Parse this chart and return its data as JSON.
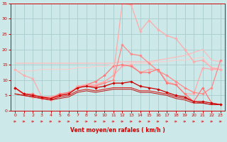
{
  "background_color": "#cce8e8",
  "grid_color": "#aacccc",
  "xlabel": "Vent moyen/en rafales ( km/h )",
  "xlabel_color": "#cc0000",
  "tick_color": "#cc0000",
  "arrow_color": "#dd3333",
  "xlim": [
    -0.5,
    23.5
  ],
  "ylim": [
    0,
    35
  ],
  "yticks": [
    0,
    5,
    10,
    15,
    20,
    25,
    30,
    35
  ],
  "xticks": [
    0,
    1,
    2,
    3,
    4,
    5,
    6,
    7,
    8,
    9,
    10,
    11,
    12,
    13,
    14,
    15,
    16,
    17,
    18,
    19,
    20,
    21,
    22,
    23
  ],
  "lines": [
    {
      "x": [
        0,
        1,
        2,
        3,
        4,
        5,
        6,
        7,
        8,
        9,
        10,
        11,
        12,
        13,
        14,
        15,
        16,
        17,
        18,
        19,
        20,
        21,
        22,
        23
      ],
      "y": [
        13.5,
        11.5,
        10.5,
        4.5,
        4.5,
        5.5,
        5.5,
        8.0,
        8.5,
        8.5,
        9.5,
        11.5,
        14.5,
        15.0,
        12.5,
        13.5,
        13.5,
        9.5,
        8.5,
        5.5,
        5.5,
        14.0,
        13.5,
        13.5
      ],
      "color": "#ffaaaa",
      "lw": 0.9,
      "marker": "D",
      "ms": 1.8
    },
    {
      "x": [
        0,
        1,
        2,
        3,
        4,
        5,
        6,
        7,
        8,
        9,
        10,
        11,
        12,
        13,
        14,
        15,
        16,
        17,
        18,
        19,
        20,
        21,
        22,
        23
      ],
      "y": [
        15.5,
        15.5,
        15.5,
        15.5,
        15.5,
        15.5,
        15.5,
        15.5,
        15.5,
        15.5,
        15.5,
        15.5,
        16.0,
        16.0,
        16.0,
        16.0,
        16.5,
        17.0,
        17.5,
        18.0,
        19.0,
        20.0,
        16.5,
        16.0
      ],
      "color": "#ffbbbb",
      "lw": 0.9,
      "marker": null,
      "ms": 0
    },
    {
      "x": [
        0,
        1,
        2,
        3,
        4,
        5,
        6,
        7,
        8,
        9,
        10,
        11,
        12,
        13,
        14,
        15,
        16,
        17,
        18,
        19,
        20,
        21,
        22,
        23
      ],
      "y": [
        13.0,
        13.0,
        13.0,
        13.5,
        13.5,
        13.5,
        13.5,
        14.0,
        14.0,
        14.5,
        14.5,
        15.0,
        15.0,
        15.5,
        15.5,
        15.5,
        16.0,
        16.0,
        16.5,
        16.5,
        17.0,
        17.5,
        14.0,
        14.0
      ],
      "color": "#ffcccc",
      "lw": 0.8,
      "marker": null,
      "ms": 0
    },
    {
      "x": [
        0,
        1,
        2,
        3,
        4,
        5,
        6,
        7,
        8,
        9,
        10,
        11,
        12,
        13,
        14,
        15,
        16,
        17,
        18,
        19,
        20,
        21,
        22,
        23
      ],
      "y": [
        7.5,
        5.5,
        5.5,
        4.0,
        4.0,
        5.5,
        6.0,
        7.5,
        8.5,
        9.5,
        11.5,
        14.5,
        15.0,
        14.5,
        12.5,
        12.5,
        13.5,
        9.0,
        8.5,
        5.5,
        3.0,
        7.5,
        2.5,
        2.0
      ],
      "color": "#ff7777",
      "lw": 0.9,
      "marker": "D",
      "ms": 1.8
    },
    {
      "x": [
        0,
        1,
        2,
        3,
        4,
        5,
        6,
        7,
        8,
        9,
        10,
        11,
        12,
        13,
        14,
        15,
        16,
        17,
        18,
        19,
        20,
        21,
        22,
        23
      ],
      "y": [
        7.5,
        5.0,
        4.5,
        4.0,
        3.5,
        5.0,
        5.5,
        8.0,
        8.5,
        8.0,
        9.5,
        11.5,
        35.0,
        34.5,
        26.0,
        29.5,
        26.5,
        24.5,
        23.5,
        20.0,
        16.0,
        16.5,
        14.0,
        13.5
      ],
      "color": "#ffaaaa",
      "lw": 0.9,
      "marker": "D",
      "ms": 1.8
    },
    {
      "x": [
        0,
        1,
        2,
        3,
        4,
        5,
        6,
        7,
        8,
        9,
        10,
        11,
        12,
        13,
        14,
        15,
        16,
        17,
        18,
        19,
        20,
        21,
        22,
        23
      ],
      "y": [
        7.5,
        5.5,
        5.0,
        4.5,
        4.5,
        5.0,
        5.5,
        7.5,
        8.0,
        8.0,
        9.0,
        10.0,
        21.5,
        18.5,
        18.0,
        15.5,
        13.0,
        11.5,
        9.5,
        7.5,
        6.0,
        5.5,
        7.5,
        16.5
      ],
      "color": "#ff8888",
      "lw": 0.9,
      "marker": "D",
      "ms": 1.8
    },
    {
      "x": [
        0,
        1,
        2,
        3,
        4,
        5,
        6,
        7,
        8,
        9,
        10,
        11,
        12,
        13,
        14,
        15,
        16,
        17,
        18,
        19,
        20,
        21,
        22,
        23
      ],
      "y": [
        7.5,
        5.5,
        5.0,
        4.5,
        4.0,
        5.0,
        5.5,
        7.5,
        8.0,
        7.5,
        8.0,
        9.0,
        9.0,
        9.5,
        8.0,
        7.5,
        7.0,
        6.0,
        5.0,
        4.5,
        3.0,
        3.0,
        2.5,
        2.0
      ],
      "color": "#cc0000",
      "lw": 0.9,
      "marker": "D",
      "ms": 1.8
    },
    {
      "x": [
        0,
        1,
        2,
        3,
        4,
        5,
        6,
        7,
        8,
        9,
        10,
        11,
        12,
        13,
        14,
        15,
        16,
        17,
        18,
        19,
        20,
        21,
        22,
        23
      ],
      "y": [
        5.5,
        5.0,
        4.5,
        4.0,
        3.5,
        4.5,
        5.0,
        6.5,
        7.0,
        6.5,
        7.0,
        7.5,
        7.5,
        7.5,
        6.5,
        6.5,
        6.0,
        5.5,
        4.5,
        4.0,
        3.0,
        2.5,
        2.0,
        2.0
      ],
      "color": "#dd2222",
      "lw": 0.8,
      "marker": null,
      "ms": 0
    },
    {
      "x": [
        0,
        1,
        2,
        3,
        4,
        5,
        6,
        7,
        8,
        9,
        10,
        11,
        12,
        13,
        14,
        15,
        16,
        17,
        18,
        19,
        20,
        21,
        22,
        23
      ],
      "y": [
        5.5,
        5.0,
        4.5,
        4.0,
        3.5,
        4.0,
        4.5,
        6.0,
        6.5,
        6.0,
        6.5,
        7.0,
        7.0,
        7.0,
        6.0,
        6.0,
        5.5,
        5.0,
        4.0,
        3.5,
        2.5,
        2.5,
        2.0,
        2.0
      ],
      "color": "#bb1111",
      "lw": 0.7,
      "marker": null,
      "ms": 0
    }
  ]
}
